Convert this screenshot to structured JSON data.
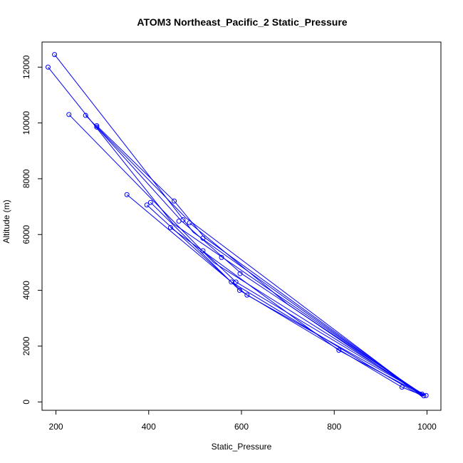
{
  "chart_data": {
    "type": "scatter",
    "title": "ATOM3 Northeast_Pacific_2 Static_Pressure",
    "xlabel": "Static_Pressure",
    "ylabel": "Altitude (m)",
    "xlim": [
      170,
      1030
    ],
    "ylim": [
      -300,
      12900
    ],
    "x_ticks": [
      200,
      400,
      600,
      800,
      1000
    ],
    "y_ticks": [
      0,
      2000,
      4000,
      6000,
      8000,
      10000,
      12000
    ],
    "x_tick_labels": [
      "200",
      "400",
      "600",
      "800",
      "1000"
    ],
    "y_tick_labels": [
      "0",
      "2000",
      "4000",
      "6000",
      "8000",
      "10000",
      "12000"
    ],
    "grid": false,
    "series": [
      {
        "color": "#0000ff",
        "points": [
          {
            "x": 197,
            "y": 12450
          },
          {
            "x": 183,
            "y": 12000
          },
          {
            "x": 228,
            "y": 10300
          },
          {
            "x": 264,
            "y": 10270
          },
          {
            "x": 288,
            "y": 9900
          },
          {
            "x": 288,
            "y": 9850
          },
          {
            "x": 353,
            "y": 7430
          },
          {
            "x": 396,
            "y": 7060
          },
          {
            "x": 404,
            "y": 7150
          },
          {
            "x": 455,
            "y": 7200
          },
          {
            "x": 465,
            "y": 6480
          },
          {
            "x": 474,
            "y": 6530
          },
          {
            "x": 488,
            "y": 6420
          },
          {
            "x": 447,
            "y": 6250
          },
          {
            "x": 517,
            "y": 5870
          },
          {
            "x": 517,
            "y": 5420
          },
          {
            "x": 557,
            "y": 5180
          },
          {
            "x": 597,
            "y": 4600
          },
          {
            "x": 578,
            "y": 4300
          },
          {
            "x": 588,
            "y": 4300
          },
          {
            "x": 596,
            "y": 4000
          },
          {
            "x": 612,
            "y": 3830
          },
          {
            "x": 810,
            "y": 1850
          },
          {
            "x": 946,
            "y": 530
          },
          {
            "x": 989,
            "y": 280
          },
          {
            "x": 993,
            "y": 220
          },
          {
            "x": 998,
            "y": 230
          }
        ],
        "lines": [
          [
            [
              197,
              12450
            ],
            [
              496,
              6080
            ],
            [
              990,
              230
            ]
          ],
          [
            [
              183,
              12000
            ],
            [
              452,
              6400
            ],
            [
              992,
              250
            ]
          ],
          [
            [
              228,
              10300
            ],
            [
              540,
              5000
            ],
            [
              993,
              260
            ]
          ],
          [
            [
              264,
              10270
            ],
            [
              480,
              6600
            ],
            [
              988,
              240
            ]
          ],
          [
            [
              288,
              9900
            ],
            [
              455,
              7200
            ],
            [
              520,
              5900
            ],
            [
              992,
              220
            ]
          ],
          [
            [
              288,
              9850
            ],
            [
              470,
              6500
            ],
            [
              600,
              4600
            ],
            [
              995,
              230
            ]
          ],
          [
            [
              353,
              7430
            ],
            [
              612,
              3830
            ],
            [
              998,
              230
            ]
          ],
          [
            [
              396,
              7060
            ],
            [
              578,
              4300
            ],
            [
              875,
              1300
            ],
            [
              990,
              200
            ]
          ],
          [
            [
              404,
              7150
            ],
            [
              596,
              4000
            ],
            [
              946,
              530
            ],
            [
              993,
              220
            ]
          ],
          [
            [
              447,
              6250
            ],
            [
              810,
              1850
            ],
            [
              992,
              250
            ]
          ],
          [
            [
              488,
              6420
            ],
            [
              700,
              3500
            ],
            [
              990,
              210
            ]
          ],
          [
            [
              517,
              5420
            ],
            [
              588,
              4300
            ],
            [
              900,
              1200
            ],
            [
              996,
              230
            ]
          ]
        ]
      }
    ]
  }
}
